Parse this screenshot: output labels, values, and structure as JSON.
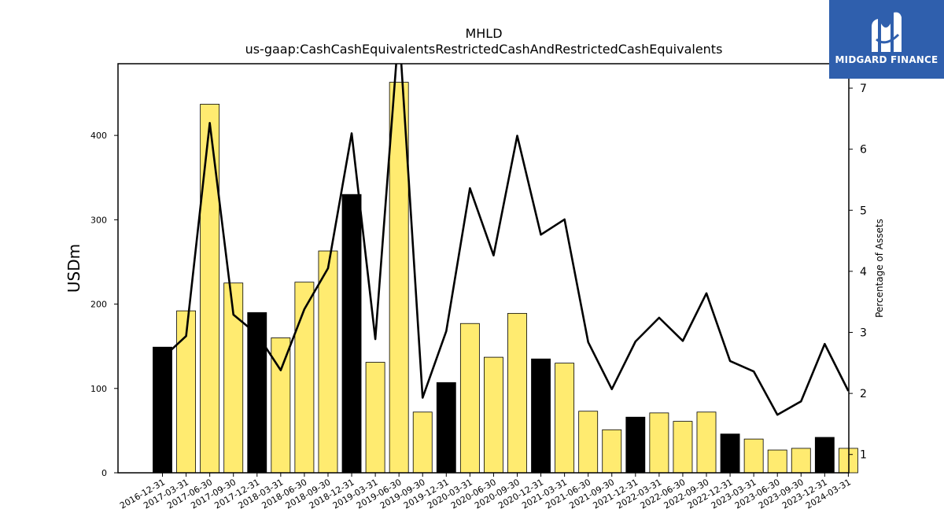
{
  "chart_data": {
    "type": "bar",
    "title": "MHLD",
    "subtitle": "us-gaap:CashCashEquivalentsRestrictedCashAndRestrictedCashEquivalents",
    "ylabel": "USDm",
    "y2label": "Percentage of Assets",
    "ylim": [
      0,
      485
    ],
    "y2lim": [
      0.7,
      7.4
    ],
    "yticks": [
      0,
      100,
      200,
      300,
      400
    ],
    "y2ticks": [
      1,
      2,
      3,
      4,
      5,
      6,
      7
    ],
    "categories": [
      "2016-12-31",
      "2017-03-31",
      "2017-06-30",
      "2017-09-30",
      "2017-12-31",
      "2018-03-31",
      "2018-06-30",
      "2018-09-30",
      "2018-12-31",
      "2019-03-31",
      "2019-06-30",
      "2019-09-30",
      "2019-12-31",
      "2020-03-31",
      "2020-06-30",
      "2020-09-30",
      "2020-12-31",
      "2021-03-31",
      "2021-06-30",
      "2021-09-30",
      "2021-12-31",
      "2022-03-31",
      "2022-06-30",
      "2022-09-30",
      "2022-12-31",
      "2023-03-31",
      "2023-06-30",
      "2023-09-30",
      "2023-12-31",
      "2024-03-31"
    ],
    "series": [
      {
        "type": "bar",
        "values": [
          149,
          192,
          437,
          225,
          190,
          160,
          226,
          263,
          330,
          131,
          463,
          72,
          107,
          177,
          137,
          189,
          135,
          130,
          73,
          51,
          66,
          71,
          61,
          72,
          46,
          40,
          27,
          29,
          42,
          29
        ],
        "colors": [
          "#000000",
          "#ffeb70",
          "#ffeb70",
          "#ffeb70",
          "#000000",
          "#ffeb70",
          "#ffeb70",
          "#ffeb70",
          "#000000",
          "#ffeb70",
          "#ffeb70",
          "#ffeb70",
          "#000000",
          "#ffeb70",
          "#ffeb70",
          "#ffeb70",
          "#000000",
          "#ffeb70",
          "#ffeb70",
          "#ffeb70",
          "#000000",
          "#ffeb70",
          "#ffeb70",
          "#ffeb70",
          "#000000",
          "#ffeb70",
          "#ffeb70",
          "#ffeb70",
          "#000000",
          "#ffeb70"
        ]
      },
      {
        "type": "line",
        "axis": "right",
        "color": "#000000",
        "values": [
          2.58,
          2.94,
          6.43,
          3.29,
          2.97,
          2.38,
          3.38,
          4.05,
          6.26,
          2.89,
          8.0,
          1.93,
          3.02,
          5.36,
          4.26,
          6.22,
          4.6,
          4.85,
          2.84,
          2.07,
          2.85,
          3.24,
          2.86,
          3.64,
          2.53,
          2.36,
          1.65,
          1.87,
          2.81,
          2.04
        ]
      }
    ],
    "grid": false
  },
  "logo": {
    "text": "MIDGARD FINANCE",
    "background": "#2f5fad"
  }
}
